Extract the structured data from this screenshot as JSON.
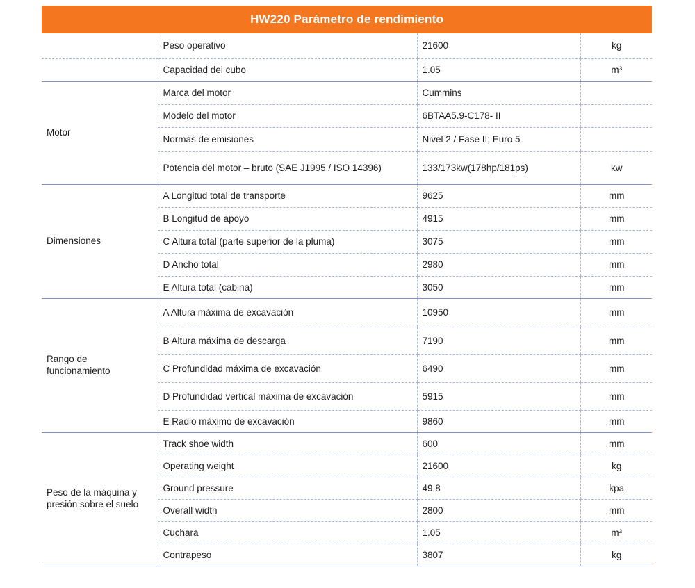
{
  "page_title": "HW220 Parámetro de rendimiento",
  "colors": {
    "header_bg": "#F4771F",
    "header_text": "#FFFFFF",
    "group_separator_line": "#8193C7",
    "row_separator_line": "#A9B5DD",
    "text": "#1F1F1F"
  },
  "table": {
    "columns": [
      "category",
      "parameter",
      "value",
      "unit"
    ],
    "groups": [
      {
        "category": "",
        "rows": [
          {
            "parameter": "Peso operativo",
            "value": "21600",
            "unit": "kg"
          },
          {
            "parameter": "Capacidad del cubo",
            "value": "1.05",
            "unit": "m³"
          }
        ]
      },
      {
        "category": "Motor",
        "rows": [
          {
            "parameter": "Marca del motor",
            "value": "Cummins",
            "unit": ""
          },
          {
            "parameter": "Modelo del motor",
            "value": "6BTAA5.9-C178- II",
            "unit": ""
          },
          {
            "parameter": "Normas de emisiones",
            "value": "Nivel 2 / Fase II; Euro 5",
            "unit": ""
          },
          {
            "parameter": "Potencia del motor – bruto (SAE J1995 / ISO 14396)",
            "value": "133/173kw(178hp/181ps)",
            "unit": "kw"
          }
        ]
      },
      {
        "category": "Dimensiones",
        "rows": [
          {
            "parameter": "A Longitud total de transporte",
            "value": "9625",
            "unit": "mm"
          },
          {
            "parameter": "B Longitud de apoyo",
            "value": "4915",
            "unit": "mm"
          },
          {
            "parameter": "C Altura total (parte superior de la pluma)",
            "value": "3075",
            "unit": "mm"
          },
          {
            "parameter": "D Ancho total",
            "value": "2980",
            "unit": "mm"
          },
          {
            "parameter": "E Altura total (cabina)",
            "value": "3050",
            "unit": "mm"
          }
        ]
      },
      {
        "category": "Rango de funcionamiento",
        "rows": [
          {
            "parameter": "A Altura máxima de excavación",
            "value": "10950",
            "unit": "mm"
          },
          {
            "parameter": "B Altura máxima de descarga",
            "value": "7190",
            "unit": "mm"
          },
          {
            "parameter": "C Profundidad máxima de excavación",
            "value": "6490",
            "unit": "mm"
          },
          {
            "parameter": "D Profundidad vertical máxima de excavación",
            "value": "5915",
            "unit": "mm"
          },
          {
            "parameter": "E Radio máximo de excavación",
            "value": "9860",
            "unit": "mm"
          }
        ]
      },
      {
        "category": "Peso de la máquina y presión sobre el suelo",
        "rows": [
          {
            "parameter": "Track shoe width",
            "value": "600",
            "unit": "mm"
          },
          {
            "parameter": "Operating weight",
            "value": "21600",
            "unit": "kg"
          },
          {
            "parameter": "Ground pressure",
            "value": "49.8",
            "unit": "kpa"
          },
          {
            "parameter": "Overall width",
            "value": "2800",
            "unit": "mm"
          },
          {
            "parameter": "Cuchara",
            "value": "1.05",
            "unit": "m³"
          },
          {
            "parameter": "Contrapeso",
            "value": "3807",
            "unit": "kg"
          }
        ]
      }
    ]
  }
}
